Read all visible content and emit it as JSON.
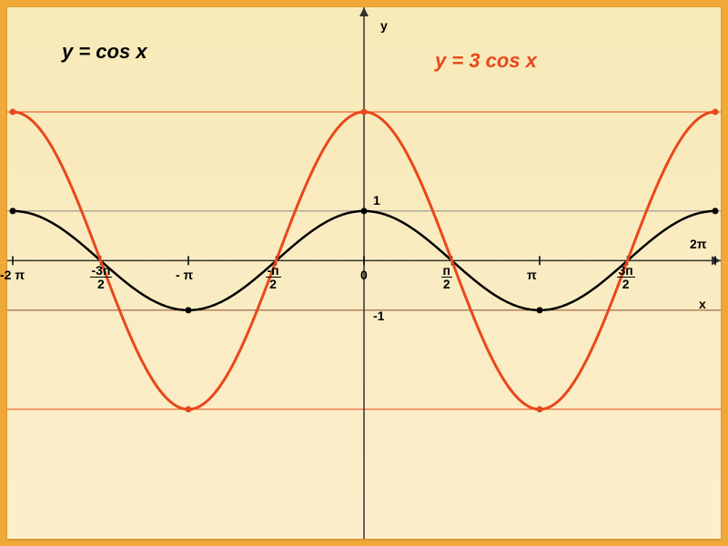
{
  "chart": {
    "type": "line",
    "background_color_outer": "#f0a938",
    "background_color_inner": "#f9eabe",
    "fontsize_title": 22,
    "fontsize_label": 14,
    "series": [
      {
        "name": "y = cos x",
        "label": "y = cos x",
        "color": "#000000",
        "width": 2.5,
        "amplitude": 1
      },
      {
        "name": "y = 3 cos x",
        "label": "y = 3 cos x",
        "color": "#e8481b",
        "width": 3,
        "amplitude": 3
      }
    ],
    "x_axis": {
      "label": "x",
      "color": "#333333",
      "range_min": -6.2832,
      "range_max": 6.2832,
      "ticks": [
        {
          "label": "-2 π",
          "value": -6.2832,
          "type": "plain"
        },
        {
          "label_top": "-3п",
          "label_bot": "2",
          "value": -4.7124,
          "type": "frac"
        },
        {
          "label": "- π",
          "value": -3.1416,
          "type": "plain"
        },
        {
          "label_top": "п",
          "label_bot": "2",
          "value": -1.5708,
          "type": "frac",
          "prefix": "-"
        },
        {
          "label": "0",
          "value": 0,
          "type": "plain"
        },
        {
          "label_top": "п",
          "label_bot": "2",
          "value": 1.5708,
          "type": "frac"
        },
        {
          "label": "π",
          "value": 3.1416,
          "type": "plain"
        },
        {
          "label_top": "3п",
          "label_bot": "2",
          "value": 4.7124,
          "type": "frac"
        },
        {
          "label": "2π",
          "value": 6.2832,
          "type": "plain",
          "right_edge": true
        }
      ]
    },
    "y_axis": {
      "label": "y",
      "color": "#333333",
      "range_min": -5.5,
      "range_max": 5,
      "ticks": [
        {
          "label": "1",
          "value": 1
        },
        {
          "label": "-1",
          "value": -1
        }
      ]
    },
    "hlines": [
      {
        "value": 3,
        "color": "#e8481b",
        "width": 1
      },
      {
        "value": 1,
        "color": "#888888",
        "width": 1
      },
      {
        "value": -1,
        "color": "#8b4a2a",
        "width": 1
      },
      {
        "value": -3,
        "color": "#e8481b",
        "width": 1
      }
    ],
    "marker_radius": 3.5
  }
}
